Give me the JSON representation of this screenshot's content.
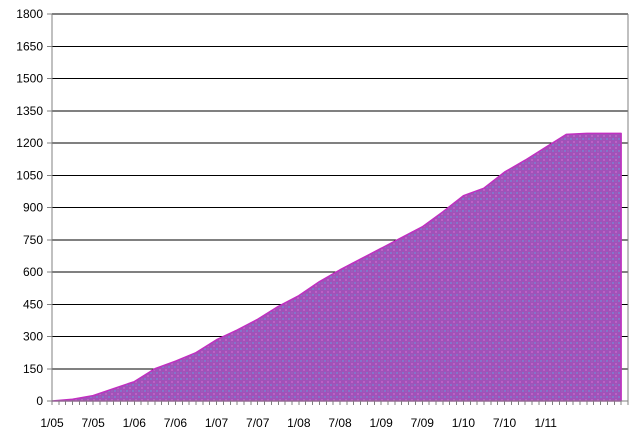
{
  "chart_data": {
    "type": "area",
    "title": "",
    "xlabel": "",
    "ylabel": "",
    "x_tick_labels": [
      "1/05",
      "7/05",
      "1/06",
      "7/06",
      "1/07",
      "7/07",
      "1/08",
      "7/08",
      "1/09",
      "7/09",
      "1/10",
      "7/10",
      "1/11"
    ],
    "y_ticks": [
      0,
      150,
      300,
      450,
      600,
      750,
      900,
      1050,
      1200,
      1350,
      1500,
      1650,
      1800
    ],
    "ylim": [
      0,
      1800
    ],
    "xlim": [
      "1/05",
      "1/12"
    ],
    "grid": true,
    "series": [
      {
        "color": "#a052b8",
        "x": [
          "1/05",
          "4/05",
          "7/05",
          "10/05",
          "1/06",
          "4/06",
          "7/06",
          "10/06",
          "1/07",
          "4/07",
          "7/07",
          "10/07",
          "1/08",
          "4/08",
          "7/08",
          "10/08",
          "1/09",
          "4/09",
          "7/09",
          "10/09",
          "1/10",
          "4/10",
          "7/10",
          "10/10",
          "1/11",
          "4/11",
          "7/11",
          "12/11"
        ],
        "values": [
          0,
          8,
          25,
          58,
          90,
          150,
          185,
          225,
          285,
          330,
          380,
          440,
          490,
          555,
          610,
          660,
          710,
          760,
          810,
          880,
          955,
          990,
          1065,
          1120,
          1180,
          1240,
          1245,
          1245
        ]
      }
    ]
  }
}
